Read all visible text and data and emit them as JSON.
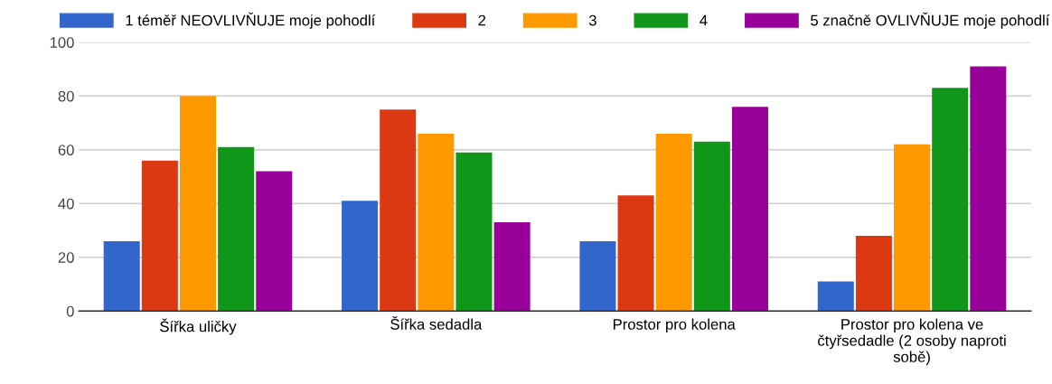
{
  "chart_data": {
    "type": "bar",
    "categories": [
      "Šířka uličky",
      "Šířka sedadla",
      "Prostor pro kolena",
      "Prostor pro kolena ve\nčtyřsedadle (2 osoby naproti\nsobě)"
    ],
    "series": [
      {
        "name": "1 téměř NEOVLIVŇUJE moje pohodlí",
        "color": "#3366cc",
        "values": [
          26,
          41,
          26,
          11
        ]
      },
      {
        "name": "2",
        "color": "#dc3912",
        "values": [
          56,
          75,
          43,
          28
        ]
      },
      {
        "name": "3",
        "color": "#ff9900",
        "values": [
          80,
          66,
          66,
          62
        ]
      },
      {
        "name": "4",
        "color": "#109618",
        "values": [
          61,
          59,
          63,
          83
        ]
      },
      {
        "name": "5 značně OVLIVŇUJE moje pohodlí",
        "color": "#990099",
        "values": [
          52,
          33,
          76,
          91
        ]
      }
    ],
    "ylim": [
      0,
      100
    ],
    "yticks": [
      0,
      20,
      40,
      60,
      80,
      100
    ],
    "grid": "y",
    "legend": "top"
  }
}
